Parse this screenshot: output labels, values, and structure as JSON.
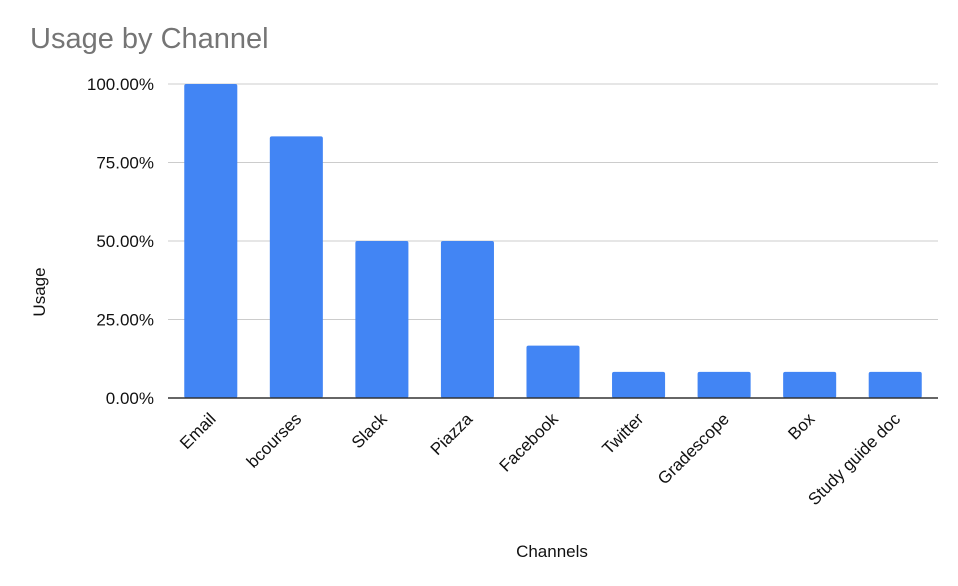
{
  "chart_data": {
    "type": "bar",
    "title": "Usage by Channel",
    "xlabel": "Channels",
    "ylabel": "Usage",
    "categories": [
      "Email",
      "bcourses",
      "Slack",
      "Piazza",
      "Facebook",
      "Twitter",
      "Gradescope",
      "Box",
      "Study guide doc"
    ],
    "values": [
      100.0,
      83.33,
      50.0,
      50.0,
      16.67,
      8.33,
      8.33,
      8.33,
      8.33
    ],
    "ylim": [
      0,
      100
    ],
    "yticks": [
      "0.00%",
      "25.00%",
      "50.00%",
      "75.00%",
      "100.00%"
    ],
    "ytick_values": [
      0,
      25,
      50,
      75,
      100
    ],
    "grid": true,
    "legend": "none",
    "bar_color": "#4285F4"
  }
}
